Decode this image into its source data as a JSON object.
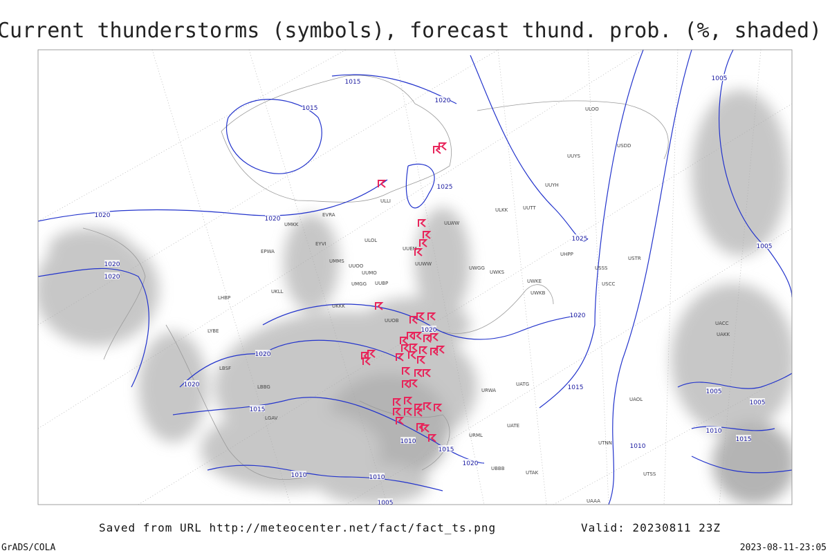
{
  "header": {
    "title": "Current thunderstorms (symbols), forecast thund. prob. (%, shaded)"
  },
  "footer": {
    "source": "Saved from URL http://meteocenter.net/fact/fact_ts.png",
    "valid": "Valid: 20230811 23Z",
    "software": "GrADS/COLA",
    "timestamp": "2023-08-11-23:05"
  },
  "map": {
    "isobar_labels": [
      "1015",
      "1015",
      "1020",
      "1025",
      "1020",
      "1020",
      "1025",
      "1020",
      "1020",
      "1005",
      "1005",
      "1020",
      "1020",
      "1020",
      "1020",
      "1015",
      "1015",
      "1005",
      "1005",
      "1010",
      "1015",
      "1010",
      "1015",
      "1020",
      "1010",
      "1010",
      "1010",
      "1005"
    ],
    "stations": [
      "ULOO",
      "UUYS",
      "USDD",
      "UUYH",
      "ULKK",
      "UUTT",
      "ULWW",
      "UHPP",
      "ULOL",
      "UUEM",
      "UUWW",
      "UUOO",
      "UWGG",
      "UWKS",
      "UWKE",
      "UWKB",
      "USCC",
      "USSS",
      "USTR",
      "UUBP",
      "UUMO",
      "UMMS",
      "UMGG",
      "UKKK",
      "UUOB",
      "URWA",
      "UATG",
      "UATE",
      "URML",
      "UBBB",
      "UTAK",
      "UTNN",
      "UAAA",
      "UACC",
      "UAKK",
      "UAOL",
      "UTSS",
      "ULLI",
      "EVRA",
      "UMKK",
      "EYVI",
      "EPWA",
      "UKLL",
      "LHBP",
      "LYBE",
      "LBSF",
      "LBBG",
      "LGAV"
    ]
  }
}
